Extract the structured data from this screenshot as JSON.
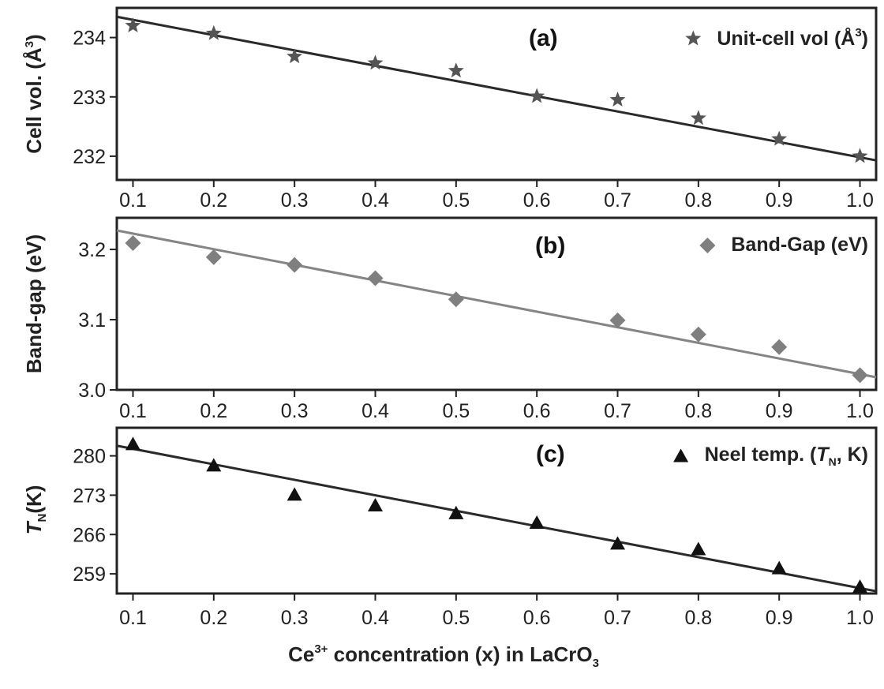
{
  "chart_data": [
    {
      "type": "scatter",
      "panel_label": "(a)",
      "ylabel_parts": {
        "main": "Cell vol. (Å",
        "sup": "3",
        "close": ")"
      },
      "xlim": [
        0.08,
        1.02
      ],
      "ylim": [
        231.6,
        234.5
      ],
      "yticks": [
        "232",
        "233",
        "234"
      ],
      "x_tick_labels": [
        "0.1",
        "0.2",
        "0.3",
        "0.4",
        "0.5",
        "0.6",
        "0.7",
        "0.8",
        "0.9",
        "1.0"
      ],
      "legend_position": "top-right",
      "marker": "star",
      "color": "#555555",
      "line_color": "#2a2a2a",
      "legend_parts": {
        "main": "Unit-cell vol (Å",
        "sup": "3",
        "close": ")"
      },
      "series": [
        {
          "x": [
            0.1,
            0.2,
            0.3,
            0.4,
            0.5,
            0.6,
            0.7,
            0.8,
            0.9,
            1.0
          ],
          "y": [
            234.2,
            234.07,
            233.68,
            233.57,
            233.44,
            233.01,
            232.95,
            232.64,
            232.29,
            232.0
          ]
        }
      ],
      "fit_line": {
        "x": [
          0.08,
          1.02
        ],
        "y": [
          234.35,
          231.93
        ]
      }
    },
    {
      "type": "scatter",
      "panel_label": "(b)",
      "ylabel": "Band-gap (eV)",
      "xlim": [
        0.08,
        1.02
      ],
      "ylim": [
        3.0,
        3.245
      ],
      "yticks": [
        "3.0",
        "3.1",
        "3.2"
      ],
      "x_tick_labels": [
        "0.1",
        "0.2",
        "0.3",
        "0.4",
        "0.5",
        "0.6",
        "0.7",
        "0.8",
        "0.9",
        "1.0"
      ],
      "legend_position": "top-right",
      "marker": "diamond",
      "color": "#7f7f7f",
      "line_color": "#858585",
      "legend": "Band-Gap (eV)",
      "series": [
        {
          "x": [
            0.1,
            0.2,
            0.3,
            0.4,
            0.5,
            0.7,
            0.8,
            0.9,
            1.0
          ],
          "y": [
            3.209,
            3.189,
            3.178,
            3.159,
            3.129,
            3.099,
            3.079,
            3.061,
            3.021
          ]
        }
      ],
      "fit_line": {
        "x": [
          0.08,
          1.02
        ],
        "y": [
          3.227,
          3.018
        ]
      }
    },
    {
      "type": "scatter",
      "panel_label": "(c)",
      "ylabel_parts": {
        "main": "T",
        "sub": "N",
        "close": "(K)"
      },
      "xlim": [
        0.08,
        1.02
      ],
      "ylim": [
        255.5,
        285.0
      ],
      "yticks": [
        "259",
        "266",
        "273",
        "280"
      ],
      "x_tick_labels": [
        "0.1",
        "0.2",
        "0.3",
        "0.4",
        "0.5",
        "0.6",
        "0.7",
        "0.8",
        "0.9",
        "1.0"
      ],
      "legend_position": "top-right",
      "marker": "triangle",
      "color": "#111111",
      "line_color": "#2a2a2a",
      "legend_parts": {
        "main": "Neel temp. (",
        "italic": "T",
        "sub": "N",
        "close": ", K)"
      },
      "xlabel_parts": {
        "pre": "Ce",
        "sup": "3+",
        "mid": " concentration (x) in LaCrO",
        "sub": "3"
      },
      "series": [
        {
          "x": [
            0.1,
            0.2,
            0.3,
            0.4,
            0.5,
            0.6,
            0.7,
            0.8,
            0.9,
            1.0
          ],
          "y": [
            282.0,
            278.2,
            273.0,
            271.1,
            269.7,
            268.0,
            264.3,
            263.3,
            259.9,
            256.6
          ]
        }
      ],
      "fit_line": {
        "x": [
          0.08,
          1.02
        ],
        "y": [
          281.8,
          255.9
        ]
      }
    }
  ]
}
